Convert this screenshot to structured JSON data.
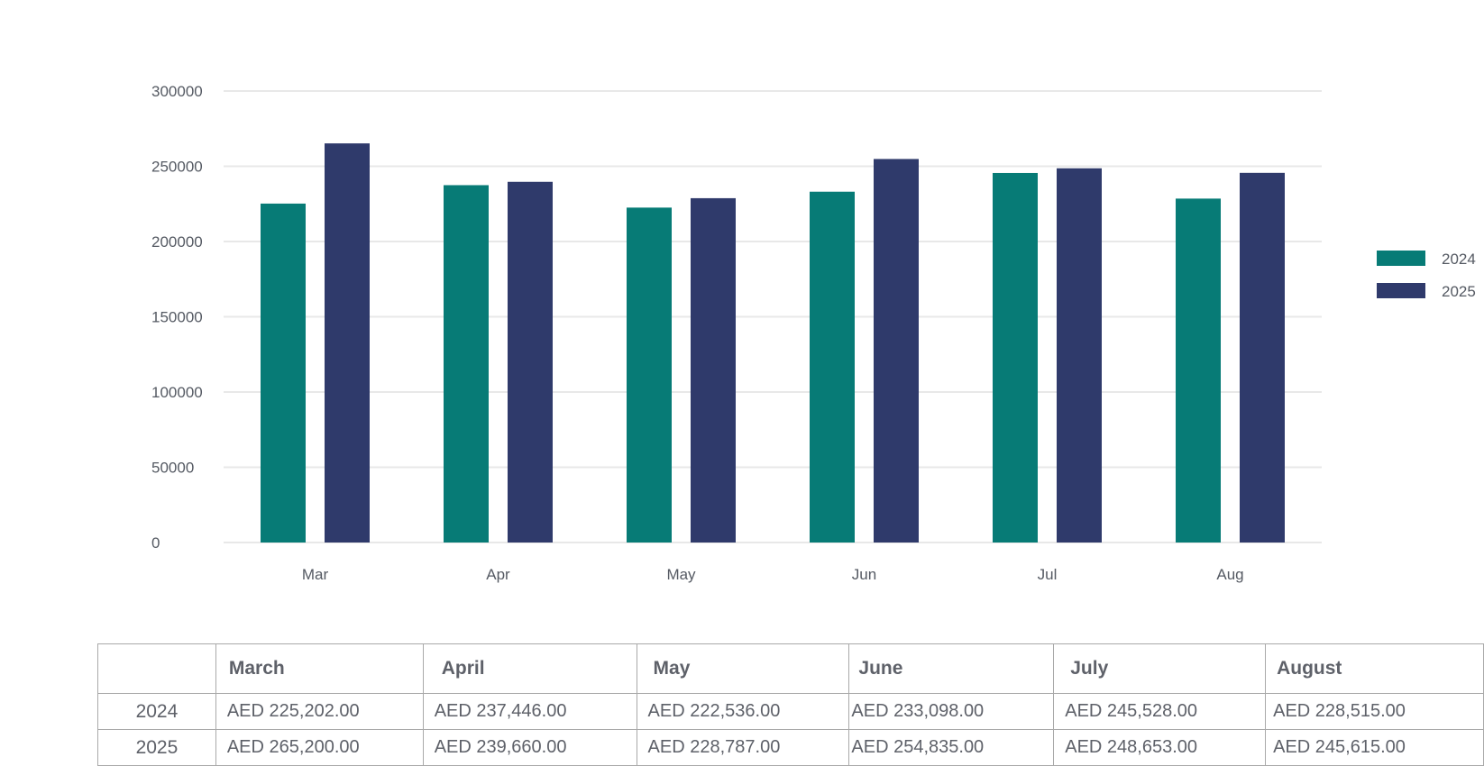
{
  "chart_data": {
    "type": "bar",
    "categories": [
      "Mar",
      "Apr",
      "May",
      "Jun",
      "Jul",
      "Aug"
    ],
    "series": [
      {
        "name": "2024",
        "color": "#077b76",
        "values": [
          225202,
          237446,
          222536,
          233098,
          245528,
          228515
        ]
      },
      {
        "name": "2025",
        "color": "#2f3a6b",
        "values": [
          265200,
          239660,
          228787,
          254835,
          248653,
          245615
        ]
      }
    ],
    "ylim": [
      0,
      300000
    ],
    "yticks": [
      "0",
      "50000",
      "100000",
      "150000",
      "200000",
      "250000",
      "300000"
    ],
    "grid": true,
    "legend_position": "right",
    "title": "",
    "xlabel": "",
    "ylabel": ""
  },
  "table": {
    "headers": [
      "",
      "March",
      "April",
      "May",
      "June",
      "July",
      "August"
    ],
    "rows": [
      {
        "year": "2024",
        "cells": [
          "AED 225,202.00",
          "AED 237,446.00",
          "AED 222,536.00",
          "AED 233,098.00",
          "AED 245,528.00",
          "AED 228,515.00"
        ]
      },
      {
        "year": "2025",
        "cells": [
          "AED 265,200.00",
          "AED 239,660.00",
          "AED 228,787.00",
          "AED 254,835.00",
          "AED 248,653.00",
          "AED 245,615.00"
        ]
      }
    ]
  }
}
